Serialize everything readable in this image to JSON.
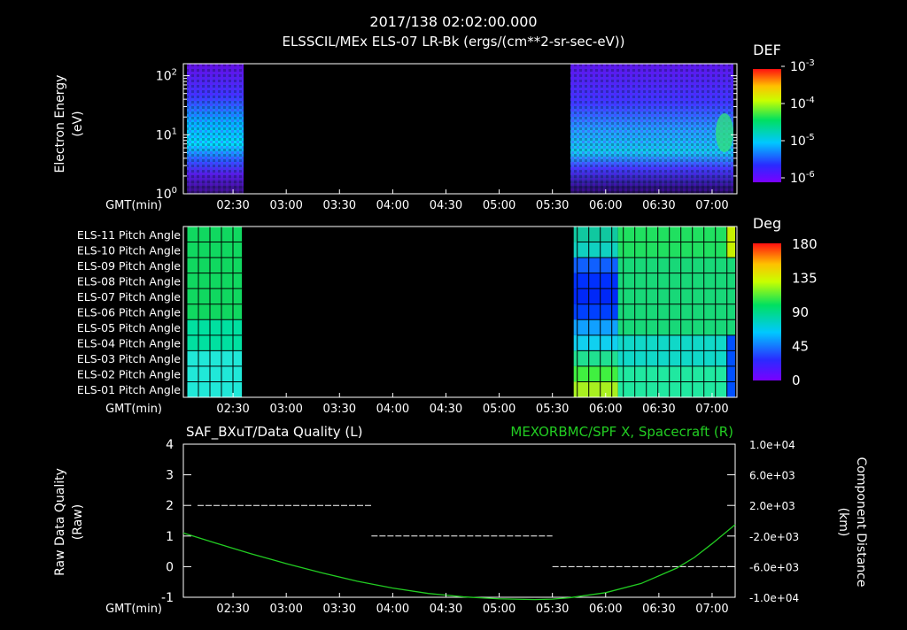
{
  "header": {
    "timestamp": "2017/138 02:02:00.000",
    "subtitle": "ELSSCIL/MEx ELS-07 LR-Bk  (ergs/(cm**2-sr-sec-eV))"
  },
  "time_axis": {
    "label": "GMT(min)",
    "ticks": [
      "02:30",
      "03:00",
      "03:30",
      "04:00",
      "04:30",
      "05:00",
      "05:30",
      "06:00",
      "06:30",
      "07:00"
    ],
    "start_min": 122,
    "end_min": 433
  },
  "panel1": {
    "ylabel_line1": "Electron Energy",
    "ylabel_line2": "(eV)",
    "yticks": [
      {
        "base": "10",
        "exp": "2",
        "value": 100
      },
      {
        "base": "10",
        "exp": "1",
        "value": 10
      },
      {
        "base": "10",
        "exp": "0",
        "value": 1
      }
    ],
    "colorbar": {
      "title": "DEF",
      "labels": [
        {
          "base": "10",
          "exp": "-3"
        },
        {
          "base": "10",
          "exp": "-4"
        },
        {
          "base": "10",
          "exp": "-5"
        },
        {
          "base": "10",
          "exp": "-6"
        }
      ]
    },
    "data_segments_min": [
      [
        122,
        155
      ],
      [
        342,
        433
      ]
    ]
  },
  "panel2": {
    "rows": [
      "ELS-11 Pitch Angle",
      "ELS-10 Pitch Angle",
      "ELS-09 Pitch Angle",
      "ELS-08 Pitch Angle",
      "ELS-07 Pitch Angle",
      "ELS-06 Pitch Angle",
      "ELS-05 Pitch Angle",
      "ELS-04 Pitch Angle",
      "ELS-03 Pitch Angle",
      "ELS-02 Pitch Angle",
      "ELS-01 Pitch Angle"
    ],
    "colorbar": {
      "title": "Deg",
      "labels": [
        "180",
        "135",
        "90",
        "45",
        "0"
      ]
    },
    "data_segments_min": [
      [
        122,
        155
      ],
      [
        342,
        433
      ]
    ]
  },
  "chart_data": {
    "type": "line",
    "title_left": "SAF_BXuT/Data Quality (L)",
    "title_right": "MEXORBMC/SPF X, Spacecraft (R)",
    "ylabel_left_line1": "Raw Data Quality",
    "ylabel_left_line2": "(Raw)",
    "ylabel_right_line1": "Component Distance",
    "ylabel_right_line2": "(km)",
    "ylim_left": [
      -1,
      4
    ],
    "yticks_left": [
      "4",
      "3",
      "2",
      "1",
      "0",
      "-1"
    ],
    "ylim_right": [
      -10000,
      10000
    ],
    "yticks_right": [
      "1.0e+04",
      "6.0e+03",
      "2.0e+03",
      "-2.0e+03",
      "-6.0e+03",
      "-1.0e+04"
    ],
    "series": [
      {
        "name": "Raw Data Quality",
        "axis": "left",
        "color": "#ffffff",
        "segments": [
          {
            "x0": 130,
            "x1": 228,
            "y": 2
          },
          {
            "x0": 228,
            "x1": 330,
            "y": 1
          },
          {
            "x0": 330,
            "x1": 433,
            "y": 0
          }
        ]
      },
      {
        "name": "MEXORBMC/SPF X, Spacecraft",
        "axis": "right",
        "color": "#22cc22",
        "x": [
          122,
          140,
          160,
          180,
          200,
          220,
          240,
          260,
          280,
          300,
          320,
          330,
          340,
          360,
          380,
          400,
          410,
          420,
          433
        ],
        "y": [
          -1600,
          -2900,
          -4300,
          -5600,
          -6800,
          -7900,
          -8800,
          -9500,
          -9950,
          -10200,
          -10300,
          -10250,
          -10050,
          -9400,
          -8200,
          -6200,
          -4800,
          -3000,
          -500
        ]
      }
    ]
  }
}
